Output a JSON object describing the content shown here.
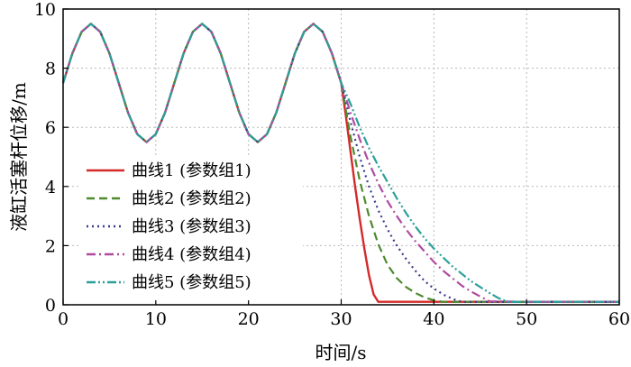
{
  "chart_data": {
    "type": "line",
    "title": "",
    "xlabel": "时间/s",
    "ylabel": "液缸活塞杆位移/m",
    "xlim": [
      0,
      60
    ],
    "ylim": [
      0,
      10
    ],
    "xticks": [
      0,
      10,
      20,
      30,
      40,
      50,
      60
    ],
    "yticks": [
      0,
      2,
      4,
      6,
      8,
      10
    ],
    "xtick_labels": [
      "0",
      "10",
      "20",
      "30",
      "40",
      "50",
      "60"
    ],
    "ytick_labels": [
      "0",
      "2",
      "4",
      "6",
      "8",
      "10"
    ],
    "grid": true,
    "legend_position": "bottom-left",
    "common_segment": {
      "x": [
        0,
        1,
        2,
        3,
        4,
        5,
        6,
        7,
        8,
        9,
        10,
        11,
        12,
        13,
        14,
        15,
        16,
        17,
        18,
        19,
        20,
        21,
        22,
        23,
        24,
        25,
        26,
        27,
        28,
        29,
        30
      ],
      "y": [
        7.5,
        8.5,
        9.23,
        9.5,
        9.23,
        8.5,
        7.5,
        6.5,
        5.77,
        5.5,
        5.77,
        6.5,
        7.5,
        8.5,
        9.23,
        9.5,
        9.23,
        8.5,
        7.5,
        6.5,
        5.77,
        5.5,
        5.77,
        6.5,
        7.5,
        8.5,
        9.23,
        9.5,
        9.23,
        8.5,
        7.5
      ]
    },
    "series": [
      {
        "name": "曲线1 (参数组1)",
        "color": "#d42a2a",
        "dash": "solid",
        "x": [
          30,
          30.5,
          31,
          31.5,
          32,
          32.5,
          33,
          33.5,
          34,
          35,
          40,
          50,
          60
        ],
        "y": [
          7.5,
          6.4,
          5.2,
          4.0,
          2.9,
          1.9,
          1.0,
          0.35,
          0.1,
          0.1,
          0.1,
          0.1,
          0.1
        ]
      },
      {
        "name": "曲线2 (参数组2)",
        "color": "#4e8a2e",
        "dash": "dashed",
        "x": [
          30,
          31,
          32,
          33,
          34,
          35,
          36,
          37,
          38,
          39,
          40,
          41,
          50,
          60
        ],
        "y": [
          7.5,
          5.7,
          4.2,
          3.0,
          2.05,
          1.35,
          0.9,
          0.6,
          0.4,
          0.25,
          0.15,
          0.1,
          0.1,
          0.1
        ]
      },
      {
        "name": "曲线3 (参数组3)",
        "color": "#3a3a8c",
        "dash": "dotted",
        "x": [
          30,
          31,
          32,
          33,
          34,
          35,
          36,
          37,
          38,
          39,
          40,
          41,
          42,
          43,
          50,
          60
        ],
        "y": [
          7.5,
          6.2,
          5.0,
          4.0,
          3.2,
          2.55,
          2.0,
          1.55,
          1.15,
          0.8,
          0.55,
          0.35,
          0.2,
          0.1,
          0.1,
          0.1
        ]
      },
      {
        "name": "曲线4 (参数组4)",
        "color": "#b04aa0",
        "dash": "dashdot",
        "x": [
          30,
          31,
          32,
          33,
          34,
          35,
          36,
          37,
          38,
          39,
          40,
          41,
          42,
          43,
          44,
          45,
          46,
          50,
          60
        ],
        "y": [
          7.5,
          6.5,
          5.6,
          4.8,
          4.1,
          3.5,
          3.0,
          2.55,
          2.15,
          1.8,
          1.45,
          1.15,
          0.9,
          0.65,
          0.45,
          0.28,
          0.12,
          0.1,
          0.1
        ]
      },
      {
        "name": "曲线5 (参数组5)",
        "color": "#2aa09a",
        "dash": "dashdotdot",
        "x": [
          30,
          31,
          32,
          33,
          34,
          35,
          36,
          37,
          38,
          39,
          40,
          41,
          42,
          43,
          44,
          45,
          46,
          47,
          48,
          50,
          60
        ],
        "y": [
          7.5,
          6.8,
          6.0,
          5.3,
          4.7,
          4.15,
          3.6,
          3.1,
          2.65,
          2.25,
          1.9,
          1.6,
          1.3,
          1.05,
          0.8,
          0.6,
          0.4,
          0.22,
          0.1,
          0.1,
          0.1
        ]
      }
    ]
  }
}
